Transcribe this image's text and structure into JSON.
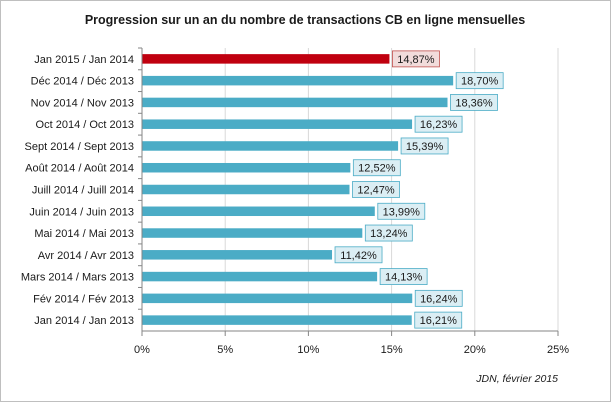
{
  "chart_data": {
    "type": "bar",
    "orientation": "horizontal",
    "title": "Progression sur un an du nombre de transactions CB en ligne mensuelles",
    "source": "JDN, février 2015",
    "categories": [
      "Jan 2015 / Jan 2014",
      "Déc 2014 / Déc 2013",
      "Nov 2014 / Nov 2013",
      "Oct 2014 / Oct 2013",
      "Sept 2014 / Sept 2013",
      "Août 2014 / Août 2014",
      "Juill 2014 / Juill 2014",
      "Juin 2014 / Juin 2013",
      "Mai 2014 / Mai 2013",
      "Avr 2014 / Avr 2013",
      "Mars 2014 / Mars 2013",
      "Fév 2014 / Fév 2013",
      "Jan 2014 / Jan 2013"
    ],
    "values": [
      14.87,
      18.7,
      18.36,
      16.23,
      15.39,
      12.52,
      12.47,
      13.99,
      13.24,
      11.42,
      14.13,
      16.24,
      16.21
    ],
    "labels": [
      "14,87%",
      "18,70%",
      "18,36%",
      "16,23%",
      "15,39%",
      "12,52%",
      "12,47%",
      "13,99%",
      "13,24%",
      "11,42%",
      "14,13%",
      "16,24%",
      "16,21%"
    ],
    "highlight_index": 0,
    "xlim": [
      0,
      25
    ],
    "xticks": [
      0,
      5,
      10,
      15,
      20,
      25
    ],
    "xtick_labels": [
      "0%",
      "5%",
      "10%",
      "15%",
      "20%",
      "25%"
    ],
    "grid": true,
    "colors": {
      "bar": "#4bacc6",
      "highlight": "#c0000f",
      "label_bg": "#dbeef4",
      "label_border": "#4bacc6",
      "highlight_label_bg": "#f2dcdb",
      "highlight_label_border": "#c0504d",
      "grid": "#d9d9d9",
      "axis": "#868686"
    }
  }
}
